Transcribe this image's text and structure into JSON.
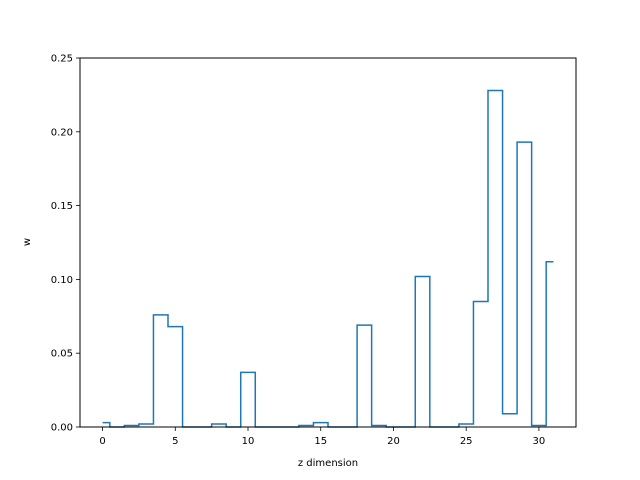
{
  "chart_data": {
    "type": "line",
    "drawstyle": "steps-mid",
    "title": "",
    "xlabel": "z dimension",
    "ylabel": "w",
    "xlim": [
      -1.55,
      32.55
    ],
    "ylim": [
      0,
      0.25
    ],
    "xticks": [
      0,
      5,
      10,
      15,
      20,
      25,
      30
    ],
    "xtick_labels": [
      "0",
      "5",
      "10",
      "15",
      "20",
      "25",
      "30"
    ],
    "yticks": [
      0,
      0.05,
      0.1,
      0.15,
      0.2,
      0.25
    ],
    "ytick_labels": [
      "0.00",
      "0.05",
      "0.10",
      "0.15",
      "0.20",
      "0.25"
    ],
    "grid": false,
    "legend": "none",
    "series": [
      {
        "color": "#1f77b4",
        "x": [
          0,
          1,
          2,
          3,
          4,
          5,
          6,
          7,
          8,
          9,
          10,
          11,
          12,
          13,
          14,
          15,
          16,
          17,
          18,
          19,
          20,
          21,
          22,
          23,
          24,
          25,
          26,
          27,
          28,
          29,
          30,
          31
        ],
        "y": [
          0.003,
          0.0,
          0.001,
          0.002,
          0.076,
          0.068,
          0.0,
          0.0,
          0.002,
          0.0,
          0.037,
          0.0,
          0.0,
          0.0,
          0.001,
          0.003,
          0.0,
          0.0,
          0.069,
          0.001,
          0.0,
          0.0,
          0.102,
          0.0,
          0.0,
          0.002,
          0.085,
          0.228,
          0.009,
          0.193,
          0.001,
          0.112
        ]
      }
    ]
  }
}
